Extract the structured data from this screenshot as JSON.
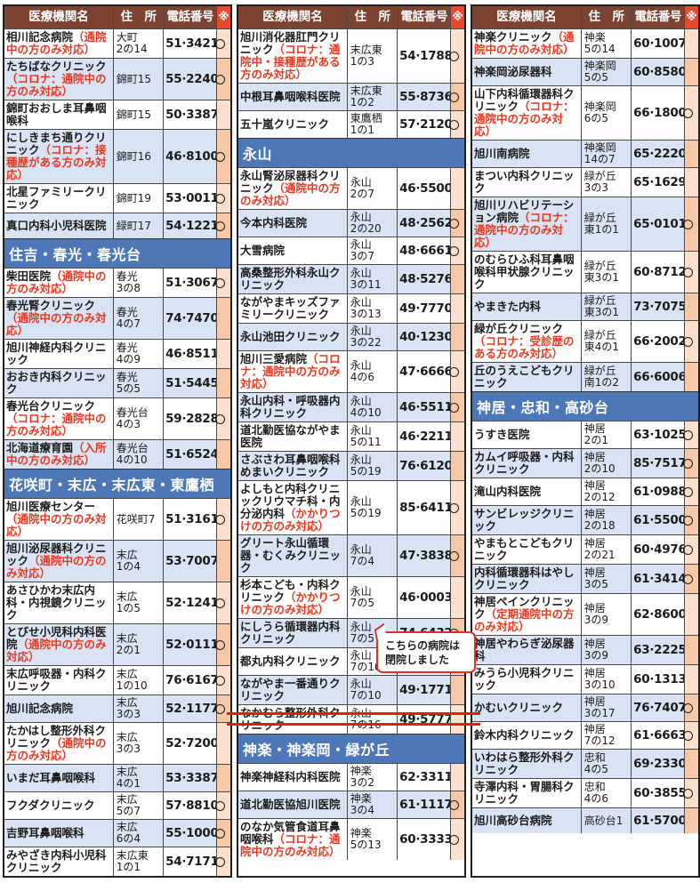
{
  "colors": {
    "header_bg": "#7c4232",
    "header_text": "#ffffff",
    "mark_header_bg": "#e8482e",
    "section_bg": "#4d77b7",
    "row_alt_bg": "#d9e3f3",
    "mark_cell_bg": "#fbe0cd",
    "mark_cell_alt_bg": "#f6c8a8",
    "note_red": "#e83820",
    "strike_red": "#dd2010",
    "callout_border": "#e0301e"
  },
  "table_header": {
    "name": "医療機関名",
    "address": "住　所",
    "phone": "電話番号",
    "mark": "※"
  },
  "callout": {
    "line1": "こちらの病院は",
    "line2": "閉院しました"
  },
  "columns": [
    {
      "blocks": [
        {
          "type": "rows",
          "rows": [
            {
              "name": "相川記念病院",
              "note": "（通院中の方のみ対応）",
              "address": "大町\n2の14",
              "phone": "51·3421",
              "mark": true
            },
            {
              "name": "たちばなクリニック",
              "note": "（コロナ：通院中の方のみ対応）",
              "address": "錦町15",
              "phone": "55·2240",
              "mark": true
            },
            {
              "name": "錦町おおしま耳鼻咽喉科",
              "address": "錦町15",
              "phone": "50·3387",
              "mark": false
            },
            {
              "name": "にしきまち通りクリニック",
              "note": "（コロナ：接種歴がある方のみ対応）",
              "address": "錦町16",
              "phone": "46·8100",
              "mark": true
            },
            {
              "name": "北星ファミリークリニック",
              "address": "錦町19",
              "phone": "53·0011",
              "mark": true
            },
            {
              "name": "真口内科小児科医院",
              "address": "緑町17",
              "phone": "54·1221",
              "mark": true
            }
          ]
        },
        {
          "type": "section",
          "title": "住吉・春光・春光台"
        },
        {
          "type": "rows",
          "rows": [
            {
              "name": "柴田医院",
              "note": "（通院中の方のみ対応）",
              "address": "春光\n3の8",
              "phone": "51·3067",
              "mark": true
            },
            {
              "name": "春光腎クリニック",
              "note": "（通院中の方のみ対応）",
              "address": "春光\n4の7",
              "phone": "74·7470",
              "mark": false
            },
            {
              "name": "旭川神経内科クリニック",
              "address": "春光\n4の9",
              "phone": "46·8511",
              "mark": false
            },
            {
              "name": "おおき内科クリニック",
              "address": "春光\n5の5",
              "phone": "51·5445",
              "mark": false
            },
            {
              "name": "春光台クリニック",
              "note": "（コロナ：通院中の方のみ対応）",
              "address": "春光台\n4の3",
              "phone": "59·2828",
              "mark": true
            },
            {
              "name": "北海道療育園",
              "note": "（入所中の方のみ対応）",
              "address": "春光台\n4の10",
              "phone": "51·6524",
              "mark": false
            }
          ]
        },
        {
          "type": "section",
          "title": "花咲町・末広・末広東・東鷹栖"
        },
        {
          "type": "rows",
          "rows": [
            {
              "name": "旭川医療センター",
              "note": "（通院中の方のみ対応）",
              "address": "花咲町7",
              "phone": "51·3161",
              "mark": true
            },
            {
              "name": "旭川泌尿器科クリニック",
              "note": "（通院中の方のみ対応）",
              "address": "末広\n1の4",
              "phone": "53·7007",
              "mark": false
            },
            {
              "name": "あさひかわ末広内科・内視鏡クリニック",
              "address": "末広\n1の5",
              "phone": "52·1241",
              "mark": true
            },
            {
              "name": "とびせ小児科内科医院",
              "note": "（通院中の方のみ対応）",
              "address": "末広\n2の1",
              "phone": "52·0111",
              "mark": true
            },
            {
              "name": "末広呼吸器・内科クリニック",
              "address": "末広\n1の10",
              "phone": "76·6167",
              "mark": true
            },
            {
              "name": "旭川記念病院",
              "address": "末広\n3の3",
              "phone": "52·1177",
              "mark": true
            },
            {
              "name": "たかはし整形外科クリニック",
              "note": "（通院中の方のみ対応）",
              "address": "末広\n3の3",
              "phone": "52·7200",
              "mark": false
            },
            {
              "name": "いまだ耳鼻咽喉科",
              "address": "末広\n4の1",
              "phone": "53·3387",
              "mark": false
            },
            {
              "name": "フクダクリニック",
              "address": "末広\n5の7",
              "phone": "57·8810",
              "mark": true
            },
            {
              "name": "吉野耳鼻咽喉科",
              "address": "末広\n6の4",
              "phone": "55·1000",
              "mark": true
            },
            {
              "name": "みやざき内科小児科クリニック",
              "address": "末広東\n1の1",
              "phone": "54·7171",
              "mark": true
            }
          ]
        }
      ]
    },
    {
      "blocks": [
        {
          "type": "rows",
          "rows": [
            {
              "name": "旭川消化器肛門クリニック",
              "note": "（コロナ：通院中・接種歴がある方のみ対応）",
              "address": "末広東\n1の3",
              "phone": "54·1788",
              "mark": true
            },
            {
              "name": "中根耳鼻咽喉科医院",
              "address": "末広東\n1の2",
              "phone": "55·8736",
              "mark": true
            },
            {
              "name": "五十嵐クリニック",
              "address": "東鷹栖\n1の1",
              "phone": "57·2120",
              "mark": true
            }
          ]
        },
        {
          "type": "section",
          "title": "永山"
        },
        {
          "type": "rows",
          "rows": [
            {
              "name": "永山腎泌尿器科クリニック",
              "note": "（通院中の方のみ対応）",
              "address": "永山\n2の7",
              "phone": "46·5500",
              "mark": false
            },
            {
              "name": "今本内科医院",
              "address": "永山\n2の20",
              "phone": "48·2562",
              "mark": true
            },
            {
              "name": "大雪病院",
              "address": "永山\n3の7",
              "phone": "48·6661",
              "mark": true
            },
            {
              "name": "高桑整形外科永山クリニック",
              "address": "永山\n3の11",
              "phone": "48·5276",
              "mark": false
            },
            {
              "name": "ながやまキッズファミリークリニック",
              "address": "永山\n3の13",
              "phone": "49·7770",
              "mark": false
            },
            {
              "name": "永山池田クリニック",
              "address": "永山\n3の22",
              "phone": "40·1230",
              "mark": false
            },
            {
              "name": "旭川三愛病院",
              "note": "（コロナ：通院中の方のみ対応）",
              "address": "永山\n4の6",
              "phone": "47·6666",
              "mark": true
            },
            {
              "name": "永山内科・呼吸器内科クリニック",
              "address": "永山\n4の10",
              "phone": "46·5511",
              "mark": true
            },
            {
              "name": "道北勤医協ながやま医院",
              "address": "永山\n5の11",
              "phone": "46·2211",
              "mark": false
            },
            {
              "name": "さぶさわ耳鼻咽喉科めまいクリニック",
              "address": "永山\n5の19",
              "phone": "76·6120",
              "mark": false
            },
            {
              "name": "よしもと内科クリニックリウマチ科・内分泌内科",
              "note": "（かかりつけの方のみ対応）",
              "address": "永山\n5の19",
              "phone": "85·6411",
              "mark": true
            },
            {
              "name": "グリート永山循環器・むくみクリニック",
              "address": "永山\n7の4",
              "phone": "47·3838",
              "mark": true
            },
            {
              "name": "杉本こども・内科クリニック",
              "note": "（かかりつけの方のみ対応）",
              "address": "永山\n7の5",
              "phone": "46·0003",
              "mark": false
            },
            {
              "name": "にしうら循環器内科クリニック",
              "address": "永山\n7の5",
              "phone": "74·6432",
              "mark": true
            },
            {
              "name": "都丸内科クリニック",
              "address": "永山\n7の10",
              "phone": "46·0038",
              "mark": true
            },
            {
              "name": "ながやま一番通りクリニック",
              "address": "永山\n7の10",
              "phone": "49·1771",
              "mark": false
            },
            {
              "name": "なかむら整形外科クリニック",
              "address": "永山\n7の16",
              "phone": "49·5777",
              "mark": false,
              "closed": true
            }
          ]
        },
        {
          "type": "section",
          "title": "神楽・神楽岡・緑が丘"
        },
        {
          "type": "rows",
          "rows": [
            {
              "name": "神楽神経科内科医院",
              "address": "神楽\n3の2",
              "phone": "62·3311",
              "mark": false
            },
            {
              "name": "道北勤医協旭川医院",
              "address": "神楽\n3の4",
              "phone": "61·1117",
              "mark": true
            },
            {
              "name": "のなか気管食道耳鼻咽喉科",
              "note": "（コロナ：通院中の方のみ対応）",
              "address": "神楽\n5の13",
              "phone": "60·3333",
              "mark": true
            }
          ]
        }
      ]
    },
    {
      "blocks": [
        {
          "type": "rows",
          "rows": [
            {
              "name": "神楽クリニック",
              "note": "（通院中の方のみ対応）",
              "address": "神楽\n5の14",
              "phone": "60·1007",
              "mark": false
            },
            {
              "name": "神楽岡泌尿器科",
              "address": "神楽岡\n5の5",
              "phone": "60·8580",
              "mark": false
            },
            {
              "name": "山下内科循環器科クリニック",
              "note": "（コロナ：通院中の方のみ対応）",
              "address": "神楽岡\n6の5",
              "phone": "66·1800",
              "mark": true
            },
            {
              "name": "旭川南病院",
              "address": "神楽岡\n14の7",
              "phone": "65·2220",
              "mark": false
            },
            {
              "name": "まつい内科クリニック",
              "address": "緑が丘\n3の3",
              "phone": "65·1629",
              "mark": false
            },
            {
              "name": "旭川リハビリテーション病院",
              "note": "（コロナ：通院中の方のみ対応）",
              "address": "緑が丘\n東1の1",
              "phone": "65·0101",
              "mark": true
            },
            {
              "name": "のむらひふ科耳鼻咽喉科甲状腺クリニック",
              "address": "緑が丘\n東3の1",
              "phone": "60·8712",
              "mark": true
            },
            {
              "name": "やまきた内科",
              "address": "緑が丘\n東3の1",
              "phone": "73·7075",
              "mark": false
            },
            {
              "name": "緑が丘クリニック",
              "note": "（コロナ：受診歴のある方のみ対応）",
              "address": "緑が丘\n東4の1",
              "phone": "66·2002",
              "mark": true
            },
            {
              "name": "丘のうえこどもクリニック",
              "address": "緑が丘\n南1の2",
              "phone": "66·6006",
              "mark": false
            }
          ]
        },
        {
          "type": "section",
          "title": "神居・忠和・高砂台"
        },
        {
          "type": "rows",
          "rows": [
            {
              "name": "うすき医院",
              "address": "神居\n2の1",
              "phone": "63·1025",
              "mark": true
            },
            {
              "name": "カムイ呼吸器・内科クリニック",
              "address": "神居\n2の10",
              "phone": "85·7517",
              "mark": true
            },
            {
              "name": "滝山内科医院",
              "address": "神居\n2の12",
              "phone": "61·0988",
              "mark": true
            },
            {
              "name": "サンビレッジクリニック",
              "address": "神居\n2の18",
              "phone": "61·5500",
              "mark": true
            },
            {
              "name": "やまもとこどもクリニック",
              "address": "神居\n2の21",
              "phone": "60·4976",
              "mark": true
            },
            {
              "name": "内科循環器科はやしクリニック",
              "address": "神居\n3の5",
              "phone": "61·3414",
              "mark": true
            },
            {
              "name": "神居ペインクリニック",
              "note": "（定期通院中の方のみ対応）",
              "address": "神居\n3の9",
              "phone": "62·8600",
              "mark": false
            },
            {
              "name": "神居やわらぎ泌尿器科",
              "address": "神居\n3の9",
              "phone": "63·2225",
              "mark": false
            },
            {
              "name": "みうら小児科クリニック",
              "address": "神居\n3の10",
              "phone": "60·1313",
              "mark": false
            },
            {
              "name": "かむいクリニック",
              "address": "神居\n3の17",
              "phone": "76·7407",
              "mark": true
            },
            {
              "name": "鈴木内科クリニック",
              "address": "神居\n7の12",
              "phone": "61·6663",
              "mark": true
            },
            {
              "name": "いわはら整形外科クリニック",
              "address": "忠和\n4の5",
              "phone": "69·2330",
              "mark": false
            },
            {
              "name": "寺澤内科・胃腸科クリニック",
              "address": "忠和\n4の6",
              "phone": "60·3855",
              "mark": true
            },
            {
              "name": "旭川高砂台病院",
              "address": "高砂台1",
              "phone": "61·5700",
              "mark": false
            }
          ]
        }
      ]
    }
  ]
}
